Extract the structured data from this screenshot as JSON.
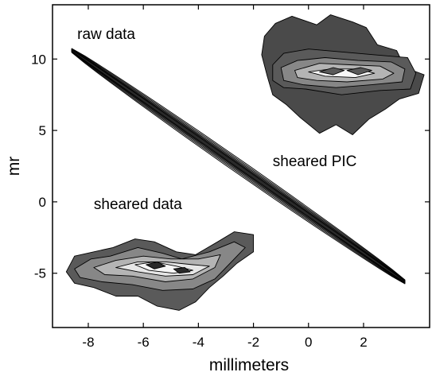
{
  "chart_data": {
    "type": "contour",
    "xlabel": "millimeters",
    "ylabel": "mr",
    "xlim": [
      -9.3,
      4.4
    ],
    "ylim": [
      -8.8,
      13.8
    ],
    "xticks": [
      -8,
      -6,
      -4,
      -2,
      0,
      2
    ],
    "xtick_labels": [
      "-8",
      "-6",
      "-4",
      "-2",
      "0",
      "2"
    ],
    "yticks": [
      -5,
      0,
      5,
      10
    ],
    "ytick_labels": [
      "-5",
      "0",
      "5",
      "10"
    ],
    "grid": false,
    "colormap": "grayscale",
    "contour_colors": [
      "#e6e6e6",
      "#b4b4b4",
      "#878787",
      "#5a5a5a",
      "#2a2a2a",
      "#f7f7f7"
    ],
    "annotations": [
      {
        "text": "raw data",
        "x": -8.4,
        "y": 11.4
      },
      {
        "text": "sheared PIC",
        "x": -1.3,
        "y": 2.5
      },
      {
        "text": "sheared data",
        "x": -7.8,
        "y": -0.5
      }
    ],
    "distributions": [
      {
        "name_shown": "raw data",
        "shape": "elongated diagonal band",
        "from": [
          -8.6,
          10.6
        ],
        "to": [
          3.5,
          -5.6
        ],
        "max_half_width_mr": 0.55
      },
      {
        "name_shown": "sheared PIC",
        "shape": "horizontal blob",
        "center": [
          1.3,
          9.0
        ],
        "x_range": [
          -1.7,
          4.3
        ],
        "y_range": [
          4.6,
          13.2
        ]
      },
      {
        "name_shown": "sheared data",
        "shape": "horizontal blob",
        "center": [
          -4.8,
          -4.3
        ],
        "x_range": [
          -8.9,
          -2.0
        ],
        "y_range": [
          -7.7,
          -2.0
        ]
      }
    ]
  }
}
